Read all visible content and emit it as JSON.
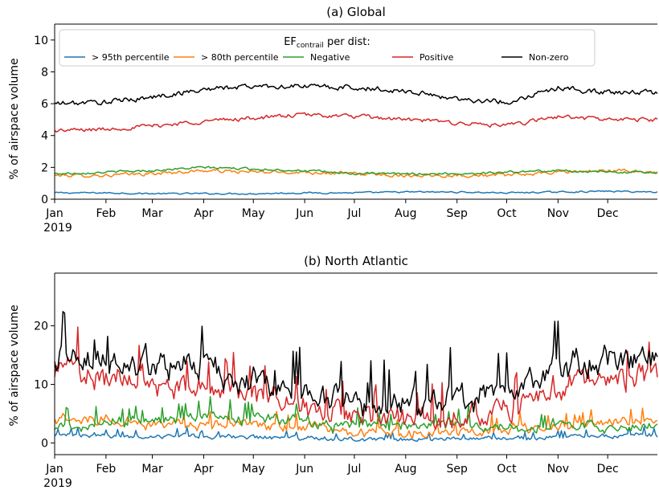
{
  "chart_data": [
    {
      "type": "line",
      "title": "(a) Global",
      "xlabel": "",
      "ylabel": "% of airspace volume",
      "ylim": [
        0,
        11
      ],
      "yticks": [
        0,
        2,
        4,
        6,
        8,
        10
      ],
      "xlim": [
        "2019-01-01",
        "2019-12-31"
      ],
      "xticks": [
        "Jan\n2019",
        "Feb",
        "Mar",
        "Apr",
        "May",
        "Jun",
        "Jul",
        "Aug",
        "Sep",
        "Oct",
        "Nov",
        "Dec"
      ],
      "grid": false,
      "legend": {
        "title": "EFcontrail per dist:",
        "title_main": "EF",
        "title_sub": "contrail",
        "title_rest": " per dist:",
        "placement": "top",
        "columns": 5
      },
      "series": [
        {
          "name": "> 95th percentile",
          "color": "#1f77b4",
          "x": [
            "2019-01-01",
            "2019-02-01",
            "2019-03-01",
            "2019-04-01",
            "2019-05-01",
            "2019-06-01",
            "2019-07-01",
            "2019-08-01",
            "2019-09-01",
            "2019-10-01",
            "2019-11-01",
            "2019-12-01",
            "2019-12-31"
          ],
          "values": [
            0.4,
            0.4,
            0.35,
            0.35,
            0.35,
            0.4,
            0.4,
            0.45,
            0.45,
            0.4,
            0.45,
            0.5,
            0.45
          ]
        },
        {
          "name": "> 80th percentile",
          "color": "#ff7f0e",
          "x": [
            "2019-01-01",
            "2019-02-01",
            "2019-03-01",
            "2019-04-01",
            "2019-05-01",
            "2019-06-01",
            "2019-07-01",
            "2019-08-01",
            "2019-09-01",
            "2019-10-01",
            "2019-11-01",
            "2019-12-01",
            "2019-12-31"
          ],
          "values": [
            1.5,
            1.5,
            1.6,
            1.8,
            1.7,
            1.7,
            1.6,
            1.5,
            1.5,
            1.5,
            1.7,
            1.8,
            1.7
          ]
        },
        {
          "name": "Negative",
          "color": "#2ca02c",
          "x": [
            "2019-01-01",
            "2019-02-01",
            "2019-03-01",
            "2019-04-01",
            "2019-05-01",
            "2019-06-01",
            "2019-07-01",
            "2019-08-01",
            "2019-09-01",
            "2019-10-01",
            "2019-11-01",
            "2019-12-01",
            "2019-12-31"
          ],
          "values": [
            1.6,
            1.7,
            1.8,
            2.0,
            1.9,
            1.8,
            1.6,
            1.6,
            1.6,
            1.7,
            1.8,
            1.7,
            1.7
          ]
        },
        {
          "name": "Positive",
          "color": "#d62728",
          "x": [
            "2019-01-01",
            "2019-02-01",
            "2019-03-01",
            "2019-04-01",
            "2019-05-01",
            "2019-06-01",
            "2019-07-01",
            "2019-08-01",
            "2019-09-01",
            "2019-10-01",
            "2019-11-01",
            "2019-12-01",
            "2019-12-31"
          ],
          "values": [
            4.3,
            4.4,
            4.6,
            4.9,
            5.1,
            5.3,
            5.2,
            5.0,
            4.8,
            4.6,
            5.2,
            5.0,
            5.0
          ]
        },
        {
          "name": "Non-zero",
          "color": "#000000",
          "x": [
            "2019-01-01",
            "2019-02-01",
            "2019-03-01",
            "2019-04-01",
            "2019-05-01",
            "2019-06-01",
            "2019-07-01",
            "2019-08-01",
            "2019-09-01",
            "2019-10-01",
            "2019-11-01",
            "2019-12-01",
            "2019-12-31"
          ],
          "values": [
            6.0,
            6.1,
            6.4,
            6.9,
            7.1,
            7.1,
            7.0,
            6.8,
            6.3,
            6.1,
            7.0,
            6.7,
            6.7
          ]
        }
      ]
    },
    {
      "type": "line",
      "title": "(b) North Atlantic",
      "xlabel": "",
      "ylabel": "% of airspace volume",
      "ylim": [
        -2,
        29
      ],
      "yticks": [
        0,
        10,
        20
      ],
      "xlim": [
        "2019-01-01",
        "2019-12-31"
      ],
      "xticks": [
        "Jan\n2019",
        "Feb",
        "Mar",
        "Apr",
        "May",
        "Jun",
        "Jul",
        "Aug",
        "Sep",
        "Oct",
        "Nov",
        "Dec"
      ],
      "grid": false,
      "series": [
        {
          "name": "> 95th percentile",
          "color": "#1f77b4",
          "x": [
            "2019-01-01",
            "2019-02-01",
            "2019-03-01",
            "2019-04-01",
            "2019-05-01",
            "2019-06-01",
            "2019-07-01",
            "2019-08-01",
            "2019-09-01",
            "2019-10-01",
            "2019-11-01",
            "2019-12-01",
            "2019-12-31"
          ],
          "values": [
            1.5,
            1.2,
            1.0,
            1.2,
            1.0,
            0.8,
            0.6,
            0.6,
            0.6,
            0.7,
            1.0,
            1.2,
            1.3
          ]
        },
        {
          "name": "> 80th percentile",
          "color": "#ff7f0e",
          "x": [
            "2019-01-01",
            "2019-02-01",
            "2019-03-01",
            "2019-04-01",
            "2019-05-01",
            "2019-06-01",
            "2019-07-01",
            "2019-08-01",
            "2019-09-01",
            "2019-10-01",
            "2019-11-01",
            "2019-12-01",
            "2019-12-31"
          ],
          "values": [
            4.5,
            4.0,
            3.5,
            3.3,
            3.0,
            2.5,
            2.0,
            1.8,
            2.0,
            2.2,
            3.0,
            3.5,
            4.0
          ]
        },
        {
          "name": "Negative",
          "color": "#2ca02c",
          "x": [
            "2019-01-01",
            "2019-02-01",
            "2019-03-01",
            "2019-04-01",
            "2019-05-01",
            "2019-06-01",
            "2019-07-01",
            "2019-08-01",
            "2019-09-01",
            "2019-10-01",
            "2019-11-01",
            "2019-12-01",
            "2019-12-31"
          ],
          "values": [
            3.0,
            3.5,
            4.0,
            4.5,
            4.0,
            3.5,
            3.0,
            3.0,
            3.0,
            2.5,
            3.0,
            3.0,
            3.0
          ]
        },
        {
          "name": "Positive",
          "color": "#d62728",
          "x": [
            "2019-01-01",
            "2019-02-01",
            "2019-03-01",
            "2019-04-01",
            "2019-05-01",
            "2019-06-01",
            "2019-07-01",
            "2019-08-01",
            "2019-09-01",
            "2019-10-01",
            "2019-11-01",
            "2019-12-01",
            "2019-12-31"
          ],
          "values": [
            13,
            11,
            10,
            9.5,
            8.5,
            6.5,
            4.5,
            4.0,
            4.5,
            6.0,
            10,
            11,
            12
          ]
        },
        {
          "name": "Non-zero",
          "color": "#000000",
          "x": [
            "2019-01-01",
            "2019-02-01",
            "2019-03-01",
            "2019-04-01",
            "2019-05-01",
            "2019-06-01",
            "2019-07-01",
            "2019-08-01",
            "2019-09-01",
            "2019-10-01",
            "2019-11-01",
            "2019-12-01",
            "2019-12-31"
          ],
          "values": [
            15,
            14,
            13,
            13,
            11,
            9,
            6.5,
            6.5,
            7.5,
            8.5,
            13,
            14,
            15
          ]
        }
      ]
    }
  ]
}
